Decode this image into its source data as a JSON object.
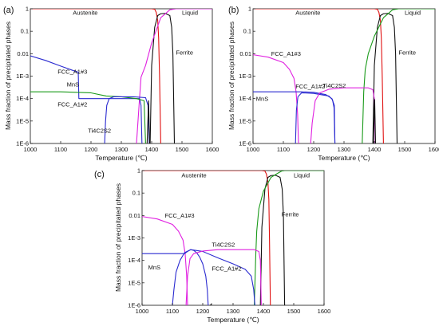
{
  "chart_data": [
    {
      "type": "line",
      "panel_label": "(a)",
      "xlabel": "Temperature (℃)",
      "ylabel": "Mass fraction of precipitated phases",
      "xlim": [
        1000,
        1600
      ],
      "ylim": [
        1e-06,
        1
      ],
      "yscale": "log",
      "xticks": [
        "1000",
        "1100",
        "1200",
        "1300",
        "1400",
        "1500",
        "1600"
      ],
      "yticks": [
        "1E-6",
        "1E-5",
        "1E-4",
        "1E-3",
        "0.01",
        "0.1",
        "1"
      ],
      "annotations": [
        {
          "text": "Austenite",
          "x": 1140,
          "y": 0.55
        },
        {
          "text": "Liquid",
          "x": 1500,
          "y": 0.55
        },
        {
          "text": "FCC_A1#3",
          "x": 1090,
          "y": 0.0013
        },
        {
          "text": "MnS",
          "x": 1120,
          "y": 0.00035
        },
        {
          "text": "FCC_A1#2",
          "x": 1090,
          "y": 4.5e-05
        },
        {
          "text": "Ti4C2S2",
          "x": 1190,
          "y": 3e-06
        },
        {
          "text": "Ferrite",
          "x": 1480,
          "y": 0.009
        }
      ],
      "series": [
        {
          "color": "#e01010",
          "x": [
            1000,
            1400,
            1410,
            1415,
            1420,
            1423,
            1426,
            1430
          ],
          "y": [
            1,
            1,
            0.95,
            0.7,
            0.3,
            0.05,
            0.001,
            1e-06
          ]
        },
        {
          "color": "#111111",
          "x": [
            1395,
            1400,
            1410,
            1420,
            1430,
            1445,
            1460,
            1466,
            1470,
            1475
          ],
          "y": [
            1e-06,
            0.003,
            0.15,
            0.5,
            0.6,
            0.62,
            0.5,
            0.15,
            0.01,
            1e-06
          ]
        },
        {
          "color": "#e020e0",
          "x": [
            1350,
            1360,
            1365,
            1380,
            1400,
            1430,
            1460,
            1480,
            1600
          ],
          "y": [
            1e-06,
            0.0001,
            0.0009,
            0.003,
            0.03,
            0.4,
            0.9,
            1,
            1
          ]
        },
        {
          "color": "#2a2ad0",
          "x": [
            1000,
            1050,
            1100,
            1140,
            1158,
            1160,
            1200,
            1250,
            1270,
            1300,
            1340,
            1360,
            1365,
            1368
          ],
          "y": [
            0.008,
            0.005,
            0.0028,
            0.0018,
            0.0015,
            0.0001,
            0.0001,
            0.0001,
            0.0001,
            0.0001,
            0.0001,
            0.0001,
            5e-05,
            1e-06
          ]
        },
        {
          "color": "#1a9a1a",
          "x": [
            1000,
            1100,
            1200,
            1250,
            1300,
            1350,
            1375,
            1380
          ],
          "y": [
            0.0002,
            0.0002,
            0.00018,
            0.00013,
            0.00012,
            0.0001,
            8e-05,
            1e-06
          ]
        },
        {
          "color": "#2a2ad0",
          "x": [
            1245,
            1248,
            1252,
            1260,
            1275,
            1300,
            1340,
            1380,
            1388,
            1392
          ],
          "y": [
            1e-06,
            1e-05,
            5e-05,
            0.0001,
            0.00012,
            0.00012,
            0.00012,
            0.00011,
            5e-05,
            1e-06
          ]
        },
        {
          "color": "#111111",
          "x": [
            1385,
            1390,
            1393
          ],
          "y": [
            1e-06,
            8e-05,
            1e-06
          ]
        }
      ]
    },
    {
      "type": "line",
      "panel_label": "(b)",
      "xlabel": "Temperature (℃)",
      "ylabel": "Mass fraction of precipitated phases",
      "xlim": [
        1000,
        1600
      ],
      "ylim": [
        1e-06,
        1
      ],
      "yscale": "log",
      "xticks": [
        "1000",
        "1100",
        "1200",
        "1300",
        "1400",
        "1500",
        "1600"
      ],
      "yticks": [
        "1E-6",
        "1E-5",
        "1E-4",
        "1E-3",
        "0.01",
        "0.1",
        "1"
      ],
      "annotations": [
        {
          "text": "Austenite",
          "x": 1140,
          "y": 0.55
        },
        {
          "text": "Liquid",
          "x": 1500,
          "y": 0.55
        },
        {
          "text": "FCC_A1#3",
          "x": 1060,
          "y": 0.008
        },
        {
          "text": "FCC_A1#2",
          "x": 1140,
          "y": 0.00028
        },
        {
          "text": "Ti4C2S2",
          "x": 1230,
          "y": 0.0003
        },
        {
          "text": "MnS",
          "x": 1010,
          "y": 8e-05
        },
        {
          "text": "Ferrite",
          "x": 1480,
          "y": 0.009
        }
      ],
      "series": [
        {
          "color": "#e01010",
          "x": [
            1000,
            1400,
            1410,
            1415,
            1420,
            1423,
            1426,
            1430
          ],
          "y": [
            1,
            1,
            0.95,
            0.7,
            0.3,
            0.05,
            0.001,
            1e-06
          ]
        },
        {
          "color": "#111111",
          "x": [
            1395,
            1400,
            1410,
            1420,
            1430,
            1445,
            1460,
            1466,
            1470,
            1475
          ],
          "y": [
            1e-06,
            0.003,
            0.15,
            0.5,
            0.6,
            0.62,
            0.5,
            0.15,
            0.01,
            1e-06
          ]
        },
        {
          "color": "#1a9a1a",
          "x": [
            1360,
            1365,
            1370,
            1380,
            1400,
            1430,
            1460,
            1480,
            1600
          ],
          "y": [
            1e-06,
            0.0002,
            0.002,
            0.01,
            0.06,
            0.4,
            0.9,
            1,
            1
          ]
        },
        {
          "color": "#e020e0",
          "x": [
            1000,
            1050,
            1100,
            1120,
            1135,
            1142,
            1147,
            1150
          ],
          "y": [
            0.009,
            0.007,
            0.004,
            0.002,
            0.0008,
            0.0002,
            2e-05,
            1e-06
          ]
        },
        {
          "color": "#2a2ad0",
          "x": [
            1000,
            1100,
            1160,
            1200,
            1240,
            1260,
            1268,
            1270
          ],
          "y": [
            0.0002,
            0.0002,
            0.0002,
            0.00019,
            0.00015,
            0.0001,
            5e-05,
            1e-06
          ]
        },
        {
          "color": "#2a2ad0",
          "x": [
            1140,
            1143,
            1148,
            1160,
            1200,
            1250,
            1262,
            1267,
            1270
          ],
          "y": [
            1e-06,
            3e-05,
            0.00012,
            0.00018,
            0.00017,
            0.00013,
            9e-05,
            4e-05,
            1e-06
          ]
        },
        {
          "color": "#e020e0",
          "x": [
            1190,
            1195,
            1205,
            1220,
            1250,
            1300,
            1380,
            1395,
            1400,
            1403
          ],
          "y": [
            1e-06,
            8e-06,
            8e-05,
            0.00018,
            0.00026,
            0.0003,
            0.0003,
            0.00025,
            0.0001,
            1e-06
          ]
        },
        {
          "color": "#111111",
          "x": [
            1397,
            1401,
            1404
          ],
          "y": [
            1e-06,
            9e-05,
            1e-06
          ]
        }
      ]
    },
    {
      "type": "line",
      "panel_label": "(c)",
      "xlabel": "Temperature (℃)",
      "ylabel": "Mass fraction of  precipitated phases",
      "xlim": [
        1000,
        1600
      ],
      "ylim": [
        1e-06,
        1
      ],
      "yscale": "log",
      "xticks": [
        "1000",
        "1100",
        "1200",
        "1300",
        "1400",
        "1500",
        "1600"
      ],
      "yticks": [
        "1E-6",
        "1E-5",
        "1E-4",
        "1E-3",
        "0.01",
        "0.1",
        "1"
      ],
      "annotations": [
        {
          "text": "Austenite",
          "x": 1130,
          "y": 0.5
        },
        {
          "text": "Liquid",
          "x": 1500,
          "y": 0.5
        },
        {
          "text": "FCC_A1#3",
          "x": 1075,
          "y": 0.008
        },
        {
          "text": "Ti4C2S2",
          "x": 1230,
          "y": 0.0004
        },
        {
          "text": "MnS",
          "x": 1020,
          "y": 4e-05
        },
        {
          "text": "FCC_A1#2",
          "x": 1230,
          "y": 3.5e-05
        },
        {
          "text": "Ferrite",
          "x": 1460,
          "y": 0.009
        }
      ],
      "series": [
        {
          "color": "#e01010",
          "x": [
            1000,
            1395,
            1405,
            1410,
            1415,
            1418,
            1420,
            1423
          ],
          "y": [
            1,
            1,
            0.95,
            0.7,
            0.3,
            0.05,
            0.001,
            1e-06
          ]
        },
        {
          "color": "#111111",
          "x": [
            1390,
            1395,
            1405,
            1415,
            1425,
            1440,
            1455,
            1462,
            1466,
            1470
          ],
          "y": [
            1e-06,
            0.003,
            0.15,
            0.5,
            0.6,
            0.62,
            0.5,
            0.15,
            0.01,
            1e-06
          ]
        },
        {
          "color": "#1a9a1a",
          "x": [
            1370,
            1375,
            1378,
            1385,
            1400,
            1425,
            1450,
            1460,
            1470,
            1600
          ],
          "y": [
            1e-06,
            0.0002,
            0.002,
            0.02,
            0.12,
            0.5,
            0.8,
            0.95,
            1,
            1
          ]
        },
        {
          "color": "#e020e0",
          "x": [
            1000,
            1050,
            1100,
            1120,
            1135,
            1142,
            1147,
            1150
          ],
          "y": [
            0.009,
            0.007,
            0.004,
            0.002,
            0.0008,
            0.0002,
            2e-05,
            1e-06
          ]
        },
        {
          "color": "#2a2ad0",
          "x": [
            1000,
            1080,
            1120,
            1140,
            1150,
            1160,
            1170,
            1180,
            1190,
            1200,
            1210,
            1215,
            1218
          ],
          "y": [
            0.0002,
            0.0002,
            0.0002,
            0.0002,
            0.00025,
            0.0003,
            0.00028,
            0.00022,
            0.00014,
            7e-05,
            2e-05,
            5e-06,
            1e-06
          ]
        },
        {
          "color": "#2a2ad0",
          "x": [
            1100,
            1105,
            1112,
            1125,
            1140,
            1160,
            1200,
            1250,
            1300,
            1340,
            1360,
            1368,
            1372
          ],
          "y": [
            1e-06,
            5e-06,
            3e-05,
            0.0001,
            0.00022,
            0.0003,
            0.00025,
            0.00013,
            7e-05,
            4e-05,
            2e-05,
            5e-06,
            1e-06
          ]
        },
        {
          "color": "#e020e0",
          "x": [
            1145,
            1150,
            1158,
            1170,
            1200,
            1250,
            1300,
            1370,
            1385,
            1390,
            1393
          ],
          "y": [
            1e-06,
            2e-05,
            0.00012,
            0.0002,
            0.00026,
            0.0003,
            0.0003,
            0.0003,
            0.00025,
            0.0001,
            1e-06
          ]
        },
        {
          "color": "#111111",
          "x": [
            1225,
            1230
          ],
          "y": [
            1e-06,
            1.2e-06
          ]
        }
      ]
    }
  ]
}
